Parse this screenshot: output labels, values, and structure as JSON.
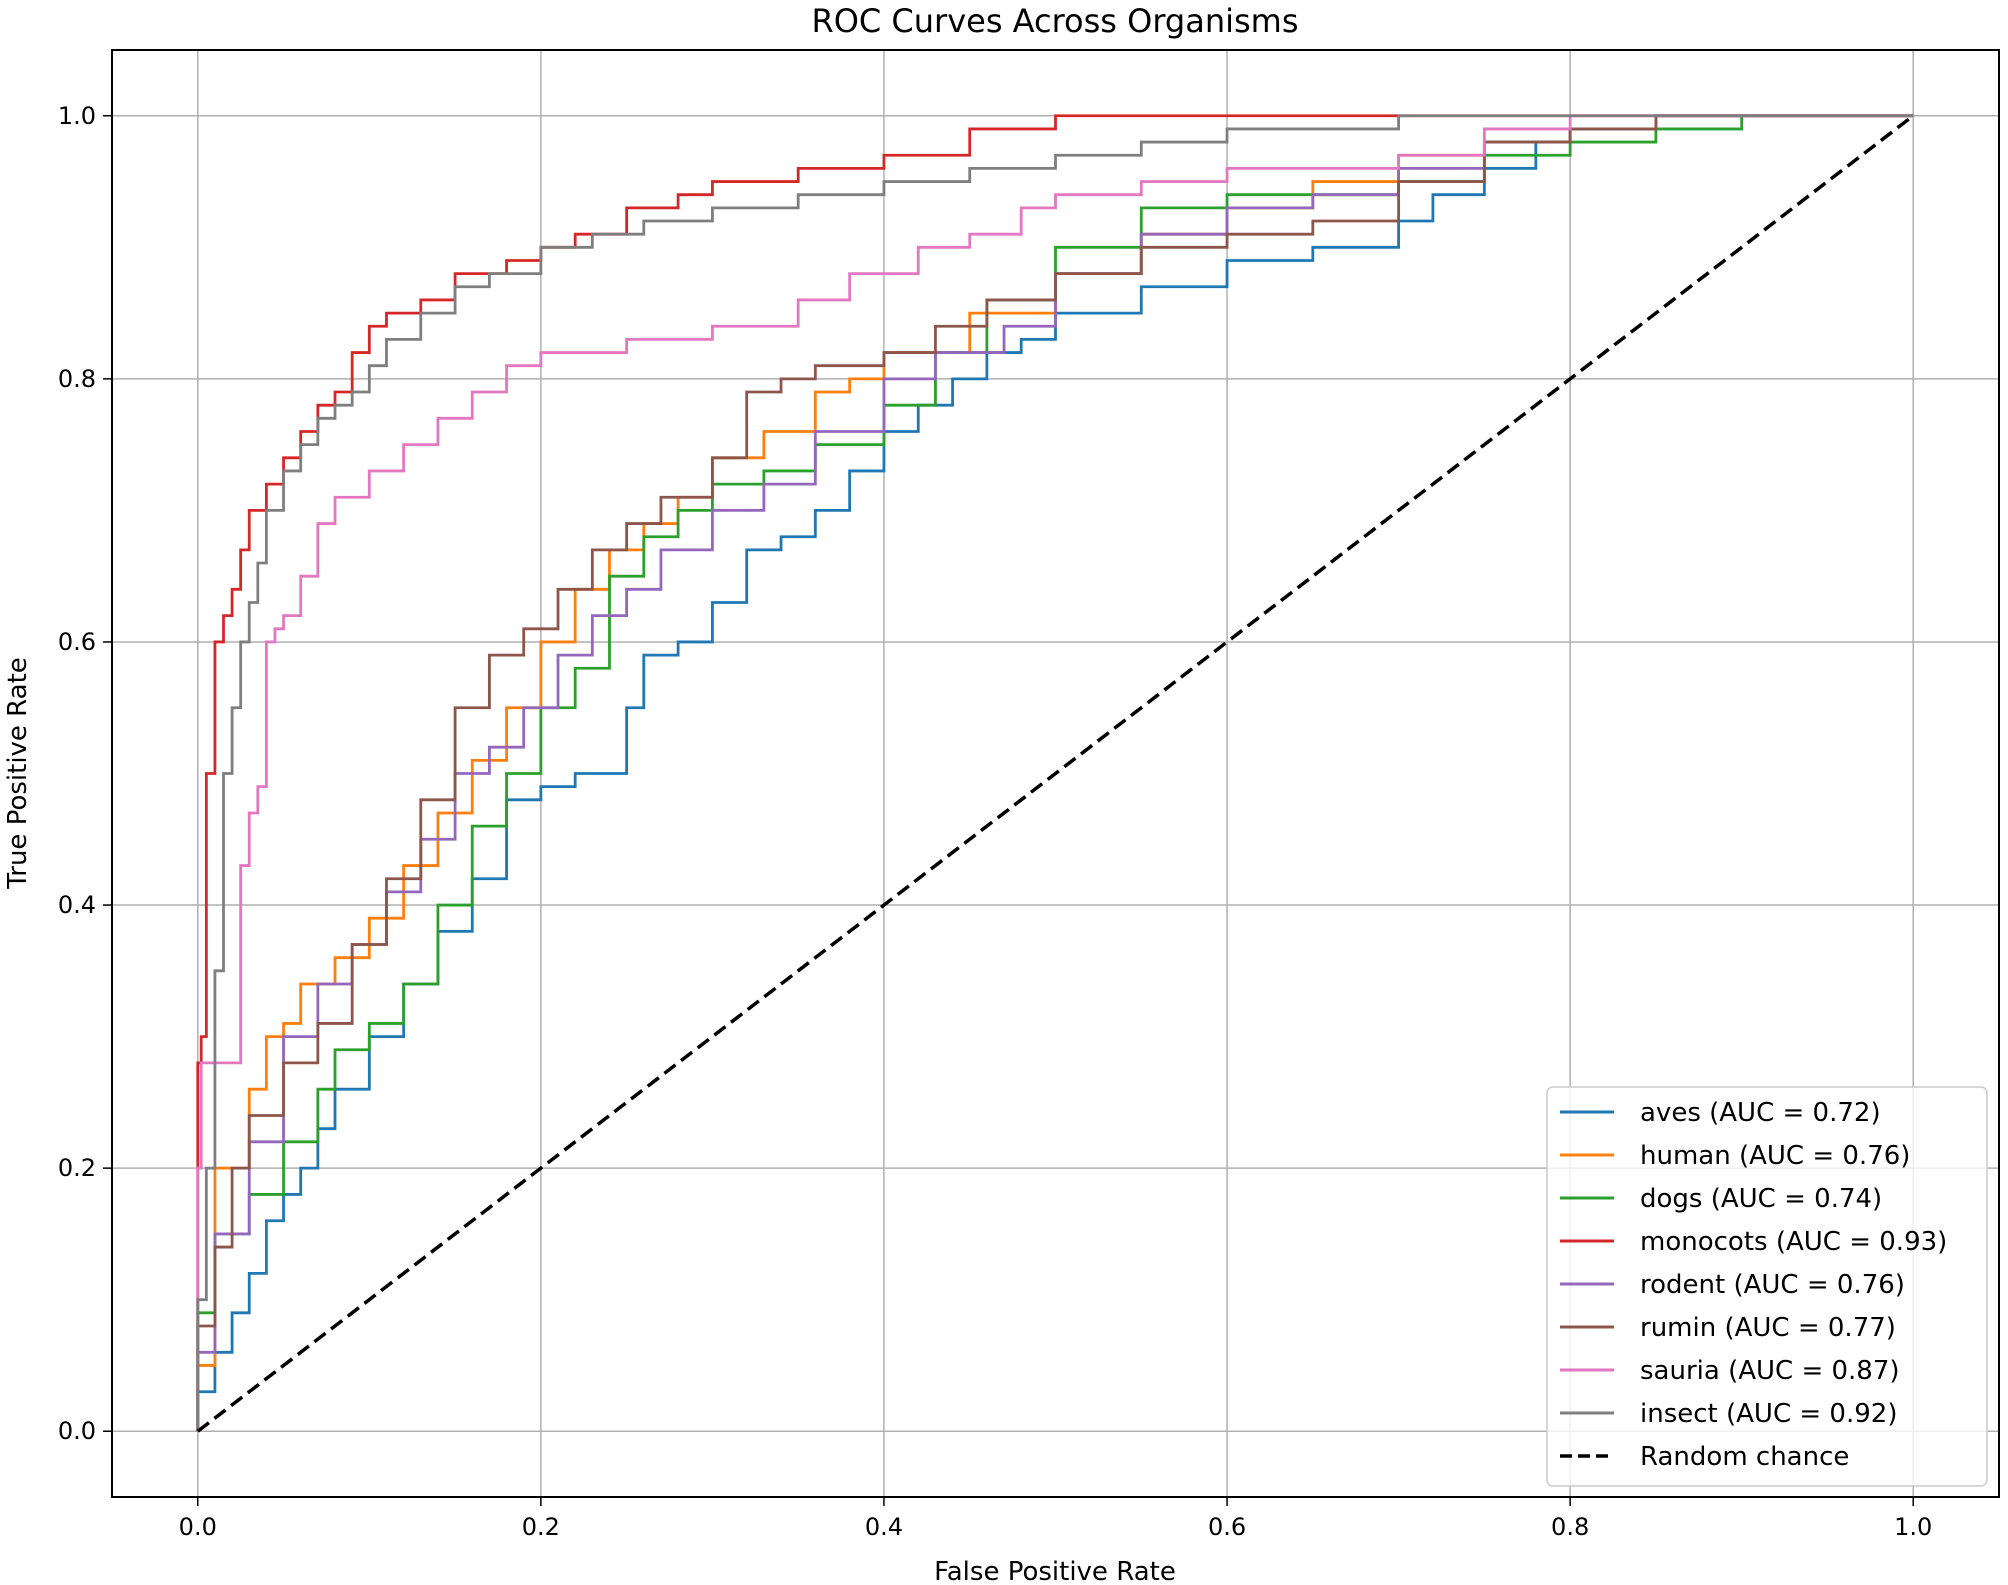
{
  "chart_data": {
    "type": "line",
    "title": "ROC Curves Across Organisms",
    "xlabel": "False Positive Rate",
    "ylabel": "True Positive Rate",
    "xlim": [
      -0.05,
      1.05
    ],
    "ylim": [
      -0.05,
      1.05
    ],
    "xticks": [
      0.0,
      0.2,
      0.4,
      0.6,
      0.8,
      1.0
    ],
    "yticks": [
      0.0,
      0.2,
      0.4,
      0.6,
      0.8,
      1.0
    ],
    "xtick_labels": [
      "0.0",
      "0.2",
      "0.4",
      "0.6",
      "0.8",
      "1.0"
    ],
    "ytick_labels": [
      "0.0",
      "0.2",
      "0.4",
      "0.6",
      "0.8",
      "1.0"
    ],
    "grid": true,
    "legend_position": "lower-right",
    "series": [
      {
        "name": "aves",
        "label": "aves (AUC = 0.72)",
        "color": "#1f77b4",
        "x": [
          0.0,
          0.01,
          0.02,
          0.03,
          0.04,
          0.05,
          0.06,
          0.07,
          0.08,
          0.1,
          0.12,
          0.14,
          0.16,
          0.18,
          0.2,
          0.22,
          0.25,
          0.26,
          0.28,
          0.3,
          0.32,
          0.34,
          0.36,
          0.38,
          0.4,
          0.42,
          0.44,
          0.46,
          0.48,
          0.5,
          0.55,
          0.6,
          0.65,
          0.7,
          0.72,
          0.75,
          0.78,
          0.8,
          0.85,
          0.9,
          1.0
        ],
        "y": [
          0.0,
          0.03,
          0.06,
          0.09,
          0.12,
          0.16,
          0.18,
          0.2,
          0.23,
          0.26,
          0.3,
          0.34,
          0.38,
          0.42,
          0.48,
          0.49,
          0.5,
          0.55,
          0.59,
          0.6,
          0.63,
          0.67,
          0.68,
          0.7,
          0.73,
          0.76,
          0.78,
          0.8,
          0.82,
          0.83,
          0.85,
          0.87,
          0.89,
          0.9,
          0.92,
          0.94,
          0.96,
          0.98,
          0.99,
          1.0,
          1.0
        ]
      },
      {
        "name": "human",
        "label": "human (AUC = 0.76)",
        "color": "#ff7f0e",
        "x": [
          0.0,
          0.01,
          0.03,
          0.04,
          0.05,
          0.06,
          0.08,
          0.1,
          0.12,
          0.14,
          0.16,
          0.18,
          0.2,
          0.22,
          0.24,
          0.26,
          0.28,
          0.3,
          0.33,
          0.36,
          0.38,
          0.4,
          0.45,
          0.5,
          0.55,
          0.6,
          0.65,
          0.7,
          0.75,
          0.8,
          0.85,
          0.9,
          1.0
        ],
        "y": [
          0.0,
          0.05,
          0.2,
          0.26,
          0.3,
          0.31,
          0.34,
          0.36,
          0.39,
          0.43,
          0.47,
          0.51,
          0.55,
          0.6,
          0.64,
          0.67,
          0.69,
          0.71,
          0.74,
          0.76,
          0.79,
          0.8,
          0.82,
          0.85,
          0.88,
          0.91,
          0.93,
          0.95,
          0.97,
          0.98,
          0.99,
          1.0,
          1.0
        ]
      },
      {
        "name": "dogs",
        "label": "dogs (AUC = 0.74)",
        "color": "#2ca02c",
        "x": [
          0.0,
          0.01,
          0.03,
          0.05,
          0.07,
          0.08,
          0.1,
          0.12,
          0.14,
          0.16,
          0.18,
          0.2,
          0.22,
          0.24,
          0.26,
          0.28,
          0.3,
          0.33,
          0.36,
          0.4,
          0.43,
          0.46,
          0.5,
          0.55,
          0.6,
          0.65,
          0.7,
          0.75,
          0.8,
          0.85,
          0.9,
          1.0
        ],
        "y": [
          0.0,
          0.09,
          0.15,
          0.18,
          0.22,
          0.26,
          0.29,
          0.31,
          0.34,
          0.4,
          0.46,
          0.5,
          0.55,
          0.58,
          0.65,
          0.68,
          0.7,
          0.72,
          0.73,
          0.75,
          0.78,
          0.82,
          0.86,
          0.9,
          0.93,
          0.94,
          0.94,
          0.95,
          0.97,
          0.98,
          0.99,
          1.0
        ]
      },
      {
        "name": "monocots",
        "label": "monocots (AUC = 0.93)",
        "color": "#d62728",
        "x": [
          0.0,
          0.002,
          0.005,
          0.01,
          0.015,
          0.02,
          0.025,
          0.03,
          0.04,
          0.05,
          0.06,
          0.07,
          0.08,
          0.09,
          0.1,
          0.11,
          0.13,
          0.15,
          0.18,
          0.2,
          0.22,
          0.25,
          0.28,
          0.3,
          0.35,
          0.4,
          0.45,
          0.5,
          0.55,
          0.6,
          0.7,
          0.8,
          0.9,
          1.0
        ],
        "y": [
          0.0,
          0.28,
          0.3,
          0.5,
          0.6,
          0.62,
          0.64,
          0.67,
          0.7,
          0.72,
          0.74,
          0.76,
          0.78,
          0.79,
          0.82,
          0.84,
          0.85,
          0.86,
          0.88,
          0.89,
          0.9,
          0.91,
          0.93,
          0.94,
          0.95,
          0.96,
          0.97,
          0.99,
          1.0,
          1.0,
          1.0,
          1.0,
          1.0,
          1.0
        ]
      },
      {
        "name": "rodent",
        "label": "rodent (AUC = 0.76)",
        "color": "#9467bd",
        "x": [
          0.0,
          0.01,
          0.03,
          0.05,
          0.07,
          0.09,
          0.11,
          0.13,
          0.15,
          0.17,
          0.19,
          0.21,
          0.23,
          0.25,
          0.27,
          0.3,
          0.33,
          0.36,
          0.4,
          0.43,
          0.47,
          0.5,
          0.55,
          0.6,
          0.65,
          0.7,
          0.75,
          0.8,
          0.85,
          0.9,
          1.0
        ],
        "y": [
          0.0,
          0.06,
          0.15,
          0.22,
          0.3,
          0.34,
          0.37,
          0.41,
          0.45,
          0.5,
          0.52,
          0.55,
          0.59,
          0.62,
          0.64,
          0.67,
          0.7,
          0.72,
          0.76,
          0.8,
          0.82,
          0.84,
          0.88,
          0.91,
          0.93,
          0.94,
          0.96,
          0.98,
          0.99,
          1.0,
          1.0
        ]
      },
      {
        "name": "rumin",
        "label": "rumin (AUC = 0.77)",
        "color": "#8c564b",
        "x": [
          0.0,
          0.01,
          0.02,
          0.03,
          0.05,
          0.07,
          0.09,
          0.11,
          0.13,
          0.15,
          0.17,
          0.19,
          0.21,
          0.23,
          0.25,
          0.27,
          0.3,
          0.32,
          0.34,
          0.36,
          0.4,
          0.43,
          0.46,
          0.5,
          0.55,
          0.6,
          0.65,
          0.7,
          0.75,
          0.8,
          0.85,
          0.9,
          1.0
        ],
        "y": [
          0.0,
          0.08,
          0.14,
          0.2,
          0.24,
          0.28,
          0.31,
          0.37,
          0.42,
          0.48,
          0.55,
          0.59,
          0.61,
          0.64,
          0.67,
          0.69,
          0.71,
          0.74,
          0.79,
          0.8,
          0.81,
          0.82,
          0.84,
          0.86,
          0.88,
          0.9,
          0.91,
          0.92,
          0.95,
          0.98,
          0.99,
          1.0,
          1.0
        ]
      },
      {
        "name": "sauria",
        "label": "sauria (AUC = 0.87)",
        "color": "#e377c2",
        "x": [
          0.0,
          0.002,
          0.005,
          0.025,
          0.03,
          0.035,
          0.04,
          0.045,
          0.05,
          0.06,
          0.07,
          0.08,
          0.09,
          0.1,
          0.12,
          0.14,
          0.16,
          0.18,
          0.2,
          0.25,
          0.3,
          0.35,
          0.38,
          0.42,
          0.45,
          0.48,
          0.5,
          0.55,
          0.6,
          0.7,
          0.75,
          0.8,
          0.85,
          0.9,
          1.0
        ],
        "y": [
          0.0,
          0.2,
          0.28,
          0.28,
          0.43,
          0.47,
          0.49,
          0.6,
          0.61,
          0.62,
          0.65,
          0.69,
          0.71,
          0.71,
          0.73,
          0.75,
          0.77,
          0.79,
          0.81,
          0.82,
          0.83,
          0.84,
          0.86,
          0.88,
          0.9,
          0.91,
          0.93,
          0.94,
          0.95,
          0.96,
          0.97,
          0.99,
          1.0,
          1.0,
          1.0
        ]
      },
      {
        "name": "insect",
        "label": "insect (AUC = 0.92)",
        "color": "#7f7f7f",
        "x": [
          0.0,
          0.005,
          0.01,
          0.015,
          0.02,
          0.025,
          0.03,
          0.035,
          0.04,
          0.05,
          0.06,
          0.07,
          0.08,
          0.09,
          0.1,
          0.11,
          0.13,
          0.15,
          0.17,
          0.2,
          0.23,
          0.26,
          0.3,
          0.35,
          0.4,
          0.45,
          0.5,
          0.55,
          0.6,
          0.7,
          0.8,
          0.9,
          1.0
        ],
        "y": [
          0.0,
          0.1,
          0.2,
          0.35,
          0.5,
          0.55,
          0.6,
          0.63,
          0.66,
          0.7,
          0.73,
          0.75,
          0.77,
          0.78,
          0.79,
          0.81,
          0.83,
          0.85,
          0.87,
          0.88,
          0.9,
          0.91,
          0.92,
          0.93,
          0.94,
          0.95,
          0.96,
          0.97,
          0.98,
          0.99,
          1.0,
          1.0,
          1.0
        ]
      },
      {
        "name": "random",
        "label": "Random chance",
        "color": "#000000",
        "dashed": true,
        "x": [
          0.0,
          1.0
        ],
        "y": [
          0.0,
          1.0
        ]
      }
    ]
  }
}
